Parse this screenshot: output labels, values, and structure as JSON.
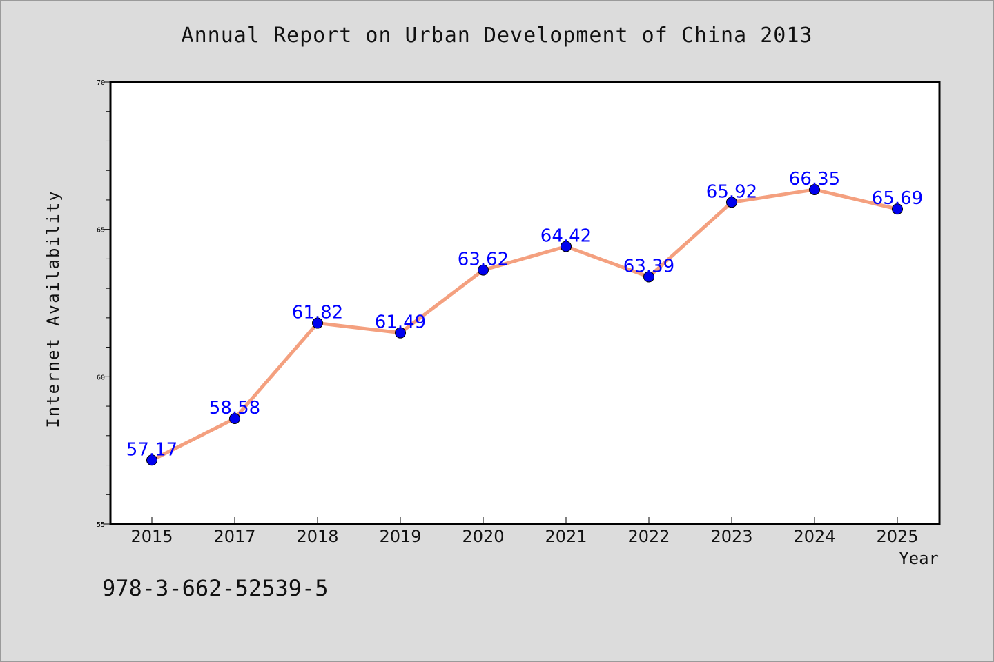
{
  "chart_data": {
    "type": "line",
    "title": "Annual Report on Urban Development of China 2013",
    "xlabel": "Year",
    "ylabel": "Internet Availability",
    "categories": [
      "2015",
      "2017",
      "2018",
      "2019",
      "2020",
      "2021",
      "2022",
      "2023",
      "2024",
      "2025"
    ],
    "series": [
      {
        "values": [
          57.17,
          58.58,
          61.82,
          61.49,
          63.62,
          64.42,
          63.39,
          65.92,
          66.35,
          65.69
        ]
      }
    ],
    "data_labels": [
      "57.17",
      "58.58",
      "61.82",
      "61.49",
      "63.62",
      "64.42",
      "63.39",
      "65.92",
      "66.35",
      "65.69"
    ],
    "ylim": [
      55,
      70
    ],
    "yticks": [
      55,
      60,
      65,
      70
    ],
    "grid": false,
    "legend": "none",
    "colors": {
      "line": "#f4a07f",
      "marker": "#0000ee",
      "data_label": "#0000ff",
      "background": "#dcdcdc",
      "plot_background": "#ffffff"
    }
  },
  "footer": {
    "isbn": "978-3-662-52539-5"
  }
}
